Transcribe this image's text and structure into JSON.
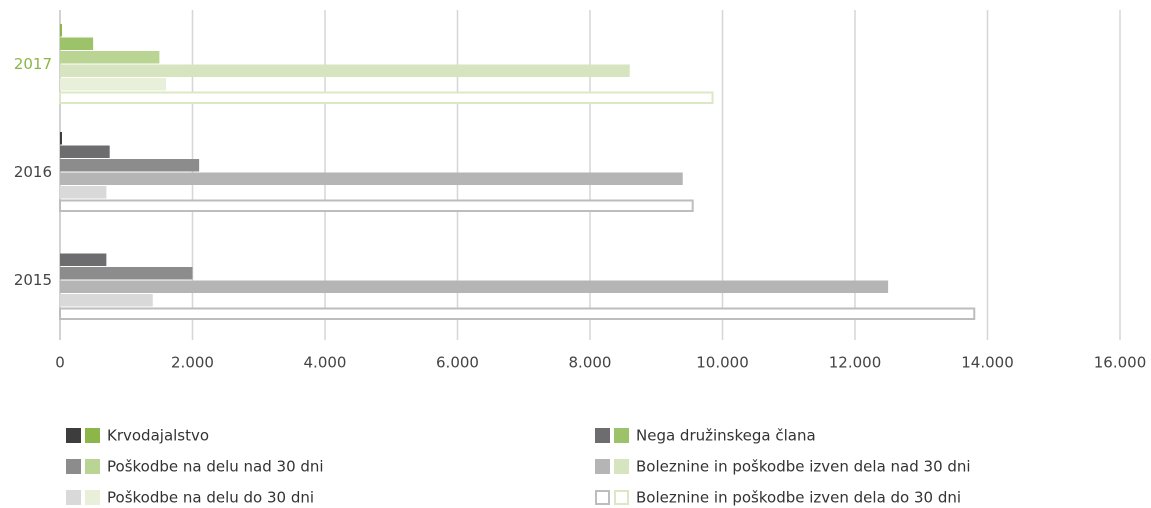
{
  "chart_data": {
    "type": "hbar",
    "categories": [
      "2017",
      "2016",
      "2015"
    ],
    "category_label_colors": [
      "#8cb54a",
      "#444444",
      "#444444"
    ],
    "series": [
      {
        "name": "Krvodajalstvo",
        "colors": [
          "#8cb54a",
          "#3d3d3d",
          "#3d3d3d"
        ],
        "values": [
          30,
          30,
          0
        ]
      },
      {
        "name": "Nega družinskega člana",
        "colors": [
          "#9cc36a",
          "#6d6d6f",
          "#6d6d6f"
        ],
        "values": [
          500,
          750,
          700
        ]
      },
      {
        "name": "Poškodbe na delu nad 30 dni",
        "colors": [
          "#b9d493",
          "#8c8c8c",
          "#8c8c8c"
        ],
        "values": [
          1500,
          2100,
          2000
        ]
      },
      {
        "name": " Boleznine in poškodbe izven dela nad 30 dni",
        "colors": [
          "#d6e5bf",
          "#b5b5b5",
          "#b5b5b5"
        ],
        "values": [
          8600,
          9400,
          12500
        ]
      },
      {
        "name": " Poškodbe na delu do 30 dni",
        "colors": [
          "#e8f0da",
          "#d9d9d9",
          "#d9d9d9"
        ],
        "values": [
          1600,
          700,
          1400
        ]
      },
      {
        "name": "Boleznine in poškodbe izven dela do 30 dni",
        "colors": [
          "#dbe8c4",
          "#bdbdbd",
          "#bdbdbd"
        ],
        "values": [
          9850,
          9550,
          13800
        ],
        "outline": true
      }
    ],
    "xlim": [
      0,
      16000
    ],
    "xticks": [
      0,
      {
        "value": 2000,
        "label": "2.000"
      },
      {
        "value": 4000,
        "label": "4.000"
      },
      {
        "value": 6000,
        "label": "6.000"
      },
      {
        "value": 8000,
        "label": "8.000"
      },
      {
        "value": 10000,
        "label": "10.000"
      },
      {
        "value": 12000,
        "label": "12.000"
      },
      {
        "value": 14000,
        "label": "14.000"
      },
      {
        "value": 16000,
        "label": "16.000"
      }
    ],
    "grid": true
  }
}
